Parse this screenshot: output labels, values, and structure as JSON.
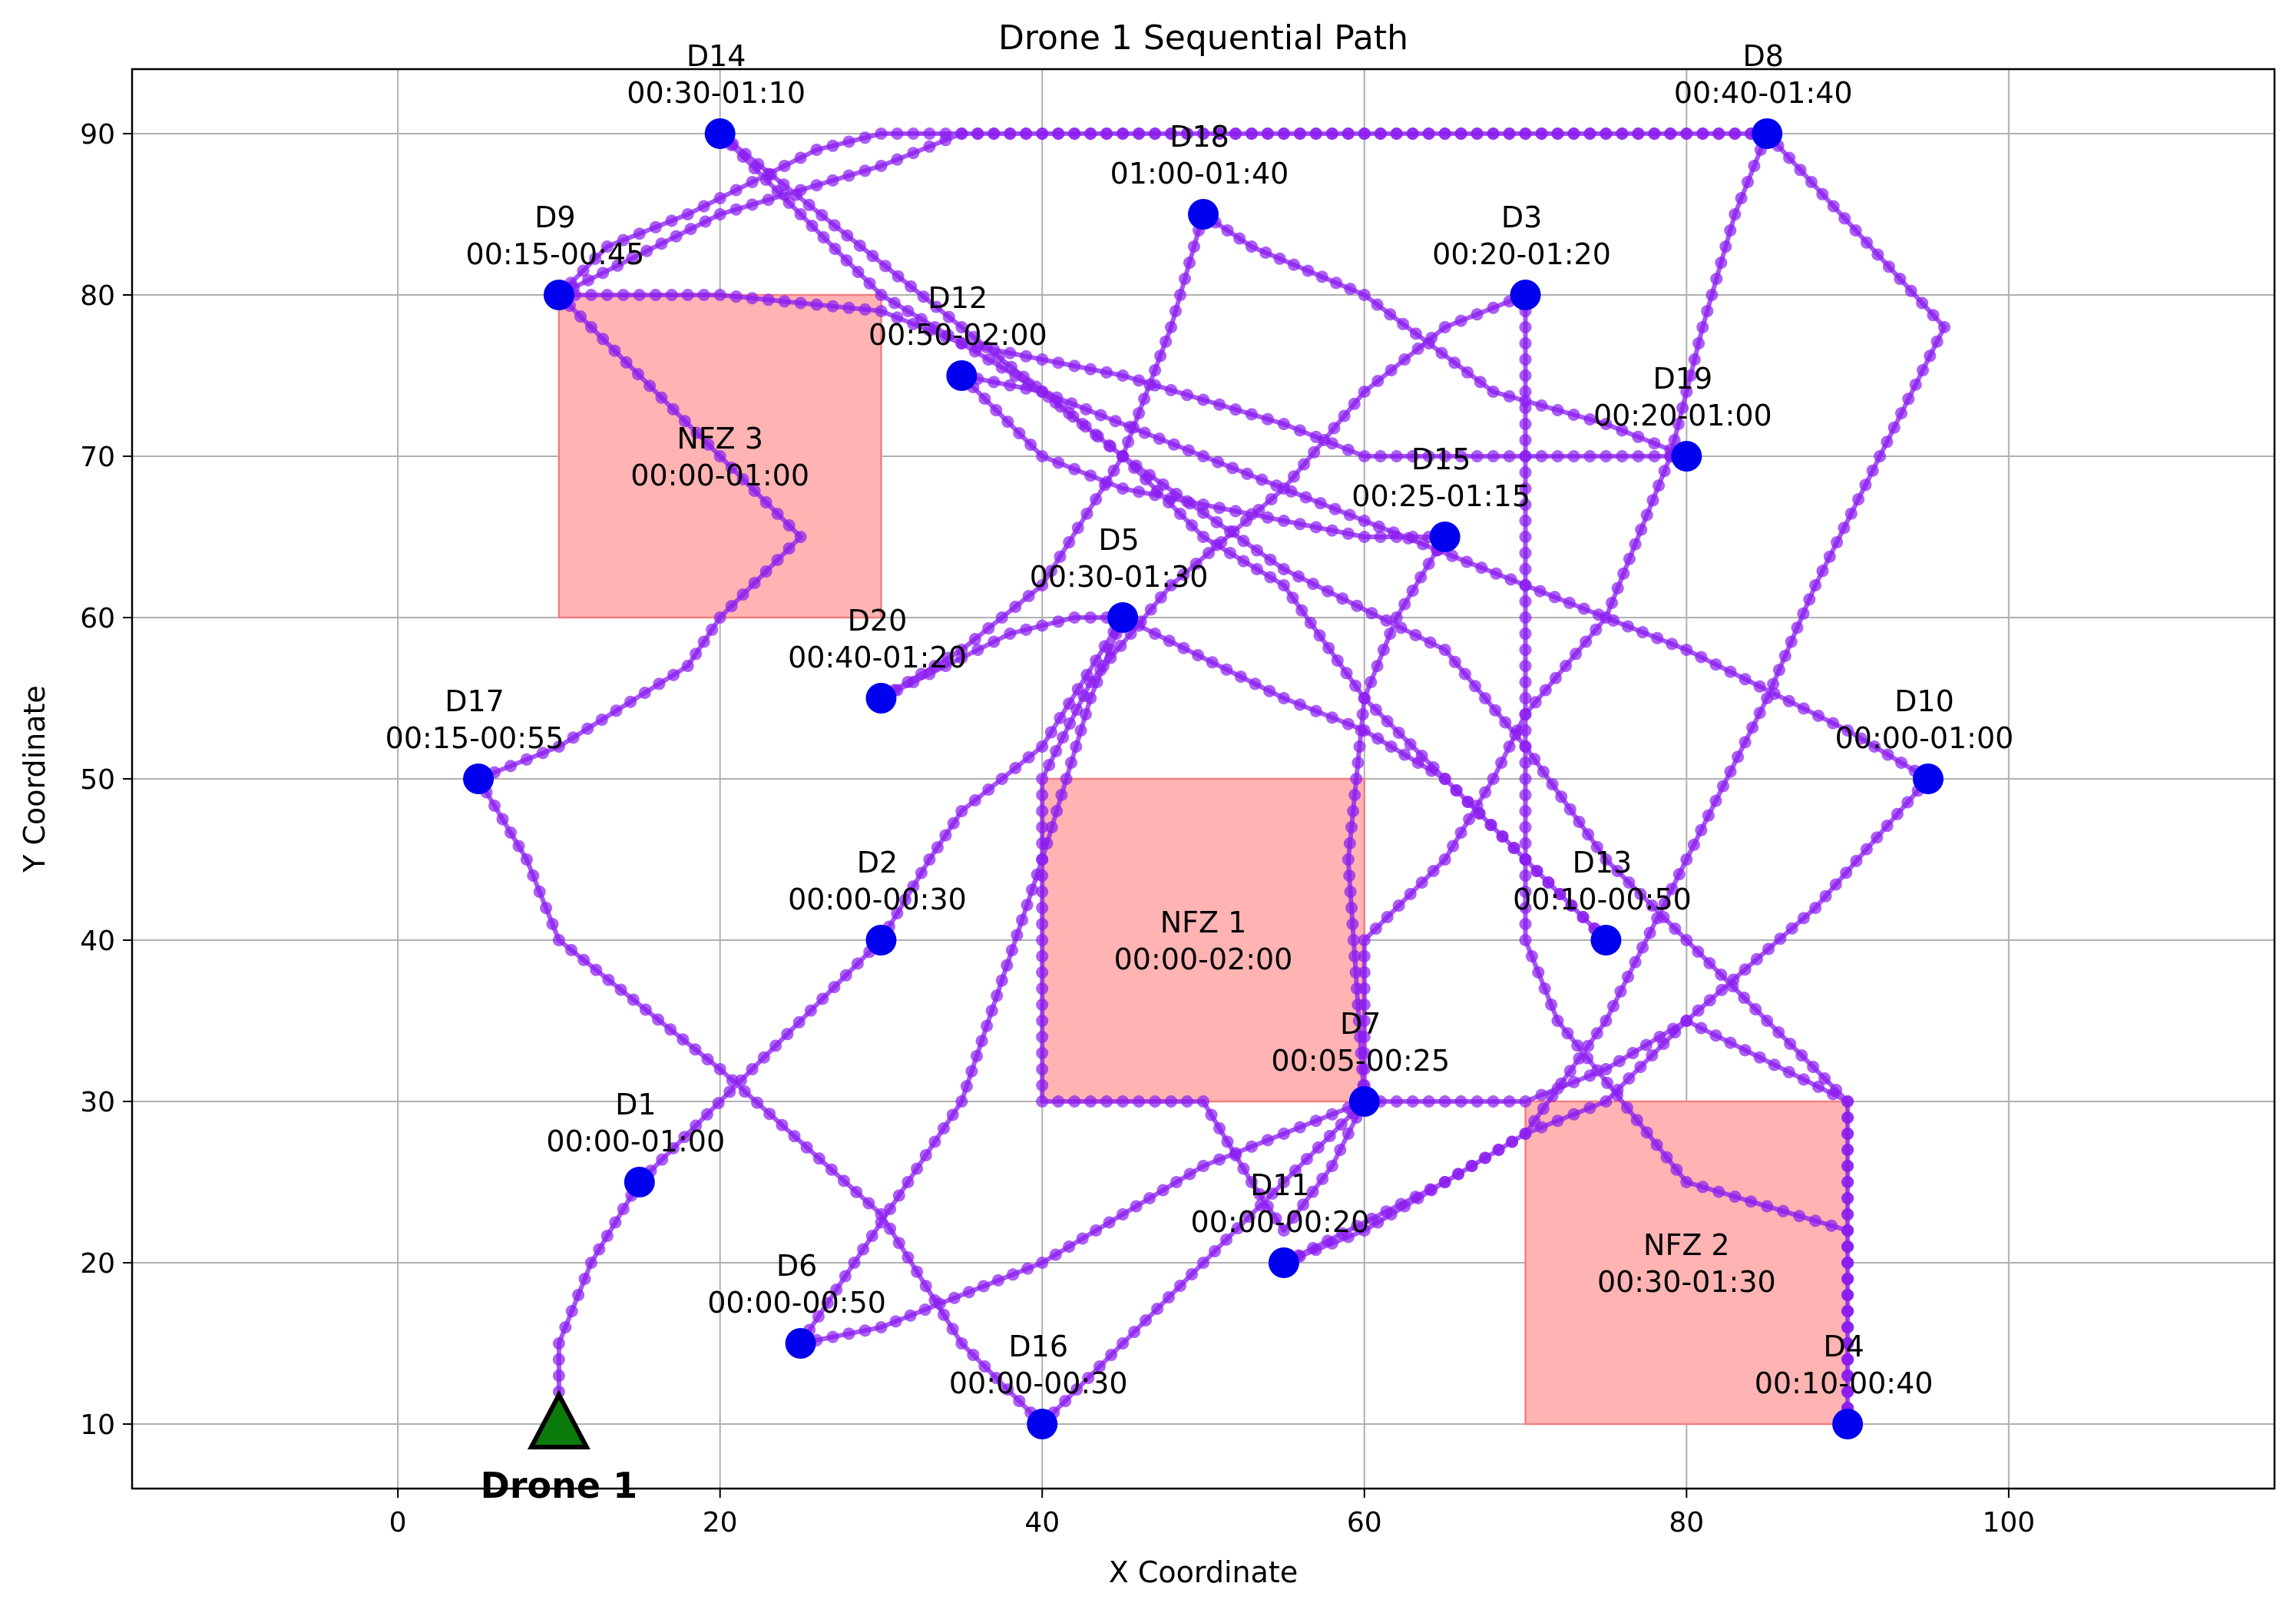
{
  "chart_data": {
    "type": "scatter",
    "title": "Drone 1 Sequential Path",
    "xlabel": "X Coordinate",
    "ylabel": "Y Coordinate",
    "xlim": [
      -16.5,
      116.5
    ],
    "ylim": [
      6,
      94
    ],
    "xticks": [
      0,
      20,
      40,
      60,
      80,
      100
    ],
    "yticks": [
      10,
      20,
      30,
      40,
      50,
      60,
      70,
      80,
      90
    ],
    "grid": true,
    "colors": {
      "path": "#8a1cf0",
      "delivery": "#0000ee",
      "nfz_fill": "#ffb3b3",
      "nfz_edge": "#f08080",
      "drone_fill": "#0a7a0a",
      "grid": "#b0b0b0"
    },
    "drone": {
      "name": "Drone 1",
      "x": 10,
      "y": 10
    },
    "no_fly_zones": [
      {
        "name": "NFZ 1",
        "window": "00:00-02:00",
        "x0": 40,
        "x1": 60,
        "y0": 30,
        "y1": 50
      },
      {
        "name": "NFZ 2",
        "window": "00:30-01:30",
        "x0": 70,
        "x1": 90,
        "y0": 10,
        "y1": 30
      },
      {
        "name": "NFZ 3",
        "window": "00:00-01:00",
        "x0": 10,
        "x1": 30,
        "y0": 60,
        "y1": 80
      }
    ],
    "deliveries": [
      {
        "name": "D1",
        "window": "00:00-01:00",
        "x": 15,
        "y": 25
      },
      {
        "name": "D2",
        "window": "00:00-00:30",
        "x": 30,
        "y": 40
      },
      {
        "name": "D3",
        "window": "00:20-01:20",
        "x": 70,
        "y": 80
      },
      {
        "name": "D4",
        "window": "00:10-00:40",
        "x": 90,
        "y": 10
      },
      {
        "name": "D5",
        "window": "00:30-01:30",
        "x": 45,
        "y": 60
      },
      {
        "name": "D6",
        "window": "00:00-00:50",
        "x": 25,
        "y": 15
      },
      {
        "name": "D7",
        "window": "00:05-00:25",
        "x": 60,
        "y": 30
      },
      {
        "name": "D8",
        "window": "00:40-01:40",
        "x": 85,
        "y": 90
      },
      {
        "name": "D9",
        "window": "00:15-00:45",
        "x": 10,
        "y": 80
      },
      {
        "name": "D10",
        "window": "00:00-01:00",
        "x": 95,
        "y": 50
      },
      {
        "name": "D11",
        "window": "00:00-00:20",
        "x": 55,
        "y": 20
      },
      {
        "name": "D12",
        "window": "00:50-02:00",
        "x": 35,
        "y": 75
      },
      {
        "name": "D13",
        "window": "00:10-00:50",
        "x": 75,
        "y": 40
      },
      {
        "name": "D14",
        "window": "00:30-01:10",
        "x": 20,
        "y": 90
      },
      {
        "name": "D15",
        "window": "00:25-01:15",
        "x": 65,
        "y": 65
      },
      {
        "name": "D16",
        "window": "00:00-00:30",
        "x": 40,
        "y": 10
      },
      {
        "name": "D17",
        "window": "00:15-00:55",
        "x": 5,
        "y": 50
      },
      {
        "name": "D18",
        "window": "01:00-01:40",
        "x": 50,
        "y": 85
      },
      {
        "name": "D19",
        "window": "00:20-01:00",
        "x": 80,
        "y": 70
      },
      {
        "name": "D20",
        "window": "00:40-01:20",
        "x": 30,
        "y": 55
      }
    ],
    "path": [
      [
        10,
        10
      ],
      [
        10,
        15
      ],
      [
        12,
        20
      ],
      [
        15,
        25
      ],
      [
        22,
        32
      ],
      [
        30,
        40
      ],
      [
        33,
        45
      ],
      [
        35,
        48
      ],
      [
        40,
        52
      ],
      [
        45,
        60
      ],
      [
        47,
        59
      ],
      [
        55,
        55
      ],
      [
        60,
        53
      ],
      [
        65,
        50
      ],
      [
        70,
        45
      ],
      [
        75,
        40
      ],
      [
        70,
        45
      ],
      [
        65,
        50
      ],
      [
        60,
        55
      ],
      [
        55,
        62
      ],
      [
        50,
        65
      ],
      [
        45,
        70
      ],
      [
        40,
        74
      ],
      [
        35,
        75
      ],
      [
        40,
        70
      ],
      [
        45,
        68
      ],
      [
        50,
        67
      ],
      [
        55,
        66
      ],
      [
        60,
        65
      ],
      [
        65,
        65
      ],
      [
        62,
        60
      ],
      [
        60,
        55
      ],
      [
        59,
        45
      ],
      [
        60,
        30
      ],
      [
        55,
        28
      ],
      [
        50,
        26
      ],
      [
        40,
        20
      ],
      [
        30,
        16
      ],
      [
        25,
        15
      ],
      [
        35,
        30
      ],
      [
        40,
        45
      ],
      [
        43,
        55
      ],
      [
        45,
        60
      ],
      [
        42,
        60
      ],
      [
        38,
        59
      ],
      [
        34,
        57
      ],
      [
        30,
        55
      ],
      [
        35,
        58
      ],
      [
        40,
        62
      ],
      [
        45,
        70
      ],
      [
        48,
        78
      ],
      [
        50,
        85
      ],
      [
        53,
        83
      ],
      [
        60,
        80
      ],
      [
        68,
        74
      ],
      [
        75,
        72
      ],
      [
        80,
        70
      ],
      [
        75,
        70
      ],
      [
        60,
        70
      ],
      [
        55,
        72
      ],
      [
        45,
        75
      ],
      [
        35,
        77
      ],
      [
        30,
        79
      ],
      [
        20,
        80
      ],
      [
        10,
        80
      ],
      [
        13,
        83
      ],
      [
        18,
        85
      ],
      [
        22,
        87
      ],
      [
        26,
        89
      ],
      [
        30,
        90
      ],
      [
        50,
        90
      ],
      [
        70,
        90
      ],
      [
        85,
        90
      ],
      [
        83,
        85
      ],
      [
        81,
        78
      ],
      [
        79,
        70
      ],
      [
        75,
        60
      ],
      [
        70,
        54
      ],
      [
        68,
        50
      ],
      [
        65,
        45
      ],
      [
        60,
        40
      ],
      [
        60,
        30
      ],
      [
        58,
        26
      ],
      [
        55,
        22
      ],
      [
        53,
        25
      ],
      [
        50,
        30
      ],
      [
        40,
        30
      ],
      [
        40,
        50
      ],
      [
        43,
        56
      ],
      [
        48,
        62
      ],
      [
        55,
        68
      ],
      [
        60,
        74
      ],
      [
        65,
        78
      ],
      [
        70,
        80
      ],
      [
        70,
        40
      ],
      [
        72,
        35
      ],
      [
        80,
        25
      ],
      [
        90,
        22
      ],
      [
        90,
        10
      ],
      [
        90,
        30
      ],
      [
        80,
        40
      ],
      [
        75,
        45
      ],
      [
        70,
        52
      ],
      [
        65,
        58
      ],
      [
        55,
        63
      ],
      [
        45,
        70
      ],
      [
        35,
        78
      ],
      [
        20,
        90
      ],
      [
        30,
        80
      ],
      [
        40,
        74
      ],
      [
        50,
        70
      ],
      [
        60,
        66
      ],
      [
        70,
        62
      ],
      [
        80,
        58
      ],
      [
        90,
        53
      ],
      [
        95,
        50
      ],
      [
        88,
        42
      ],
      [
        80,
        35
      ],
      [
        75,
        30
      ],
      [
        70,
        28
      ],
      [
        65,
        25
      ],
      [
        55,
        20
      ],
      [
        60,
        22
      ],
      [
        70,
        28
      ],
      [
        75,
        35
      ],
      [
        80,
        45
      ],
      [
        85,
        55
      ],
      [
        88,
        62
      ],
      [
        92,
        70
      ],
      [
        96,
        78
      ],
      [
        85,
        90
      ],
      [
        70,
        90
      ],
      [
        50,
        90
      ],
      [
        35,
        90
      ],
      [
        30,
        88
      ],
      [
        20,
        85
      ],
      [
        10,
        80
      ],
      [
        12,
        78
      ],
      [
        20,
        70
      ],
      [
        25,
        65
      ],
      [
        20,
        60
      ],
      [
        18,
        57
      ],
      [
        10,
        52
      ],
      [
        5,
        50
      ],
      [
        8,
        45
      ],
      [
        10,
        40
      ],
      [
        20,
        32
      ],
      [
        30,
        23
      ],
      [
        35,
        15
      ],
      [
        40,
        10
      ],
      [
        45,
        15
      ],
      [
        55,
        25
      ],
      [
        60,
        30
      ],
      [
        70,
        30
      ],
      [
        75,
        32
      ],
      [
        80,
        35
      ],
      [
        90,
        30
      ],
      [
        90,
        20
      ],
      [
        90,
        10
      ]
    ]
  }
}
